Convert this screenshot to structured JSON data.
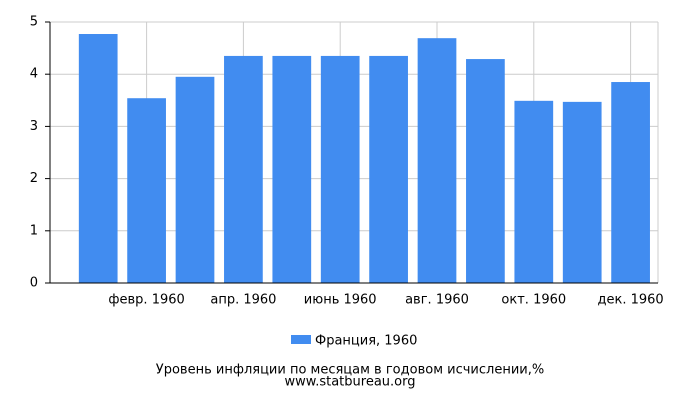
{
  "chart_data": {
    "type": "bar",
    "categories": [
      null,
      "февр. 1960",
      null,
      "апр. 1960",
      null,
      "июнь 1960",
      null,
      "авг. 1960",
      null,
      "окт. 1960",
      null,
      "дек. 1960"
    ],
    "series": [
      {
        "name": "Франция, 1960",
        "color": "#418cf0",
        "values": [
          4.77,
          3.54,
          3.95,
          4.35,
          4.35,
          4.35,
          4.35,
          4.69,
          4.29,
          3.49,
          3.47,
          3.85
        ]
      }
    ],
    "ylim": [
      0,
      5
    ],
    "yticks": [
      0,
      1,
      2,
      3,
      4,
      5
    ],
    "grid": true,
    "title": "Уровень инфляции по месяцам в годовом исчислении,%",
    "source": "www.statbureau.org"
  }
}
